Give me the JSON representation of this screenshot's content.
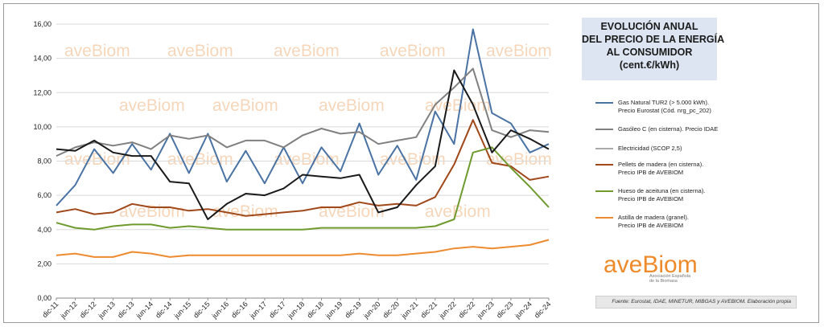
{
  "title_lines": [
    "EVOLUCIÓN ANUAL",
    "DEL PRECIO DE LA ENERGÍA",
    "AL CONSUMIDOR",
    "(cent.€/kWh)"
  ],
  "watermark": "aveBiom",
  "logo": {
    "text": "aveBiom",
    "subtitle_lines": [
      "Asociación Española",
      "de la Biomasa"
    ]
  },
  "source": "Fuente: Eurostat, IDAE, MINETUR, MIBGAS y AVEBIOM. Elaboración propia",
  "chart_data": {
    "type": "line",
    "ylim": [
      0,
      16
    ],
    "y_ticks": [
      "0,00",
      "2,00",
      "4,00",
      "6,00",
      "8,00",
      "10,00",
      "12,00",
      "14,00",
      "16,00"
    ],
    "grid": "horizontal",
    "legend_position": "right",
    "categories": [
      "dic-11",
      "jun-12",
      "dic-12",
      "jun-13",
      "dic-13",
      "jun-14",
      "dic-14",
      "jun-15",
      "dic-15",
      "jun-16",
      "dic-16",
      "jun-17",
      "dic-17",
      "jun-18",
      "dic-18",
      "jun-19",
      "dic-19",
      "jun-20",
      "dic-20",
      "jun-21",
      "dic-21",
      "jun-22",
      "dic-22",
      "jun-23",
      "dic-23",
      "jun-24",
      "dic-24"
    ],
    "series": [
      {
        "name_lines": [
          "Gas Natural TUR2 (> 5.000 kWh).",
          "Precio Eurostat (Cód. nrg_pc_202)"
        ],
        "color": "#4a73a3",
        "values": [
          5.4,
          6.6,
          8.7,
          7.3,
          9.0,
          7.5,
          9.6,
          7.3,
          9.6,
          6.8,
          8.6,
          6.7,
          8.8,
          6.7,
          8.8,
          7.4,
          10.2,
          7.2,
          8.9,
          6.9,
          10.9,
          9.0,
          15.7,
          10.8,
          10.2,
          8.5,
          9.0
        ]
      },
      {
        "name_lines": [
          "Gasóleo C (en cisterna). Precio IDAE"
        ],
        "color": "#808080",
        "values": [
          8.3,
          8.8,
          9.1,
          8.9,
          9.1,
          8.7,
          9.5,
          9.3,
          9.5,
          8.8,
          9.2,
          9.2,
          8.8,
          9.5,
          9.9,
          9.6,
          9.7,
          9.0,
          9.2,
          9.4,
          11.3,
          12.3,
          13.4,
          9.8,
          9.4,
          9.8,
          9.7
        ]
      },
      {
        "name_lines": [
          "Electricidad (SCOP 2,5)"
        ],
        "color": "#aaaaaa",
        "values": [
          null,
          null,
          null,
          null,
          null,
          null,
          null,
          null,
          null,
          null,
          null,
          null,
          null,
          null,
          null,
          null,
          null,
          null,
          null,
          null,
          null,
          null,
          null,
          null,
          null,
          null,
          null
        ]
      },
      {
        "name_lines": [
          "Pellets de madera (en cisterna).",
          "Precio IPB de AVEBIOM"
        ],
        "color": "#a0481a",
        "values": [
          5.0,
          5.2,
          4.9,
          5.0,
          5.5,
          5.3,
          5.3,
          5.1,
          5.2,
          5.0,
          4.8,
          4.9,
          5.0,
          5.1,
          5.3,
          5.3,
          5.6,
          5.4,
          5.5,
          5.4,
          5.9,
          7.8,
          10.4,
          7.9,
          7.7,
          6.9,
          7.1
        ]
      },
      {
        "name_lines": [
          "Hueso de aceituna (en cisterna).",
          "Precio IPB de AVEBIOM"
        ],
        "color": "#6f9a2e",
        "values": [
          4.4,
          4.1,
          4.0,
          4.2,
          4.3,
          4.3,
          4.1,
          4.2,
          4.1,
          4.0,
          4.0,
          4.0,
          4.0,
          4.0,
          4.1,
          4.1,
          4.1,
          4.1,
          4.1,
          4.1,
          4.2,
          4.6,
          8.5,
          8.8,
          7.6,
          6.5,
          5.3
        ]
      },
      {
        "name_lines": [
          "Astilla de madera (granel).",
          "Precio IPB de AVEBIOM"
        ],
        "color": "#ee8a2f",
        "values": [
          2.5,
          2.6,
          2.4,
          2.4,
          2.7,
          2.6,
          2.4,
          2.5,
          2.5,
          2.5,
          2.5,
          2.5,
          2.5,
          2.5,
          2.5,
          2.5,
          2.6,
          2.5,
          2.5,
          2.6,
          2.7,
          2.9,
          3.0,
          2.9,
          3.0,
          3.1,
          3.4
        ]
      },
      {
        "name_lines": [],
        "color": "#1a1a1a",
        "values": [
          8.7,
          8.6,
          9.2,
          8.5,
          8.3,
          8.3,
          6.8,
          6.7,
          4.6,
          5.5,
          6.1,
          6.0,
          6.4,
          7.2,
          7.1,
          7.0,
          7.2,
          5.0,
          5.3,
          6.6,
          7.7,
          13.3,
          11.3,
          8.5,
          9.8,
          9.3,
          8.7
        ]
      }
    ]
  }
}
